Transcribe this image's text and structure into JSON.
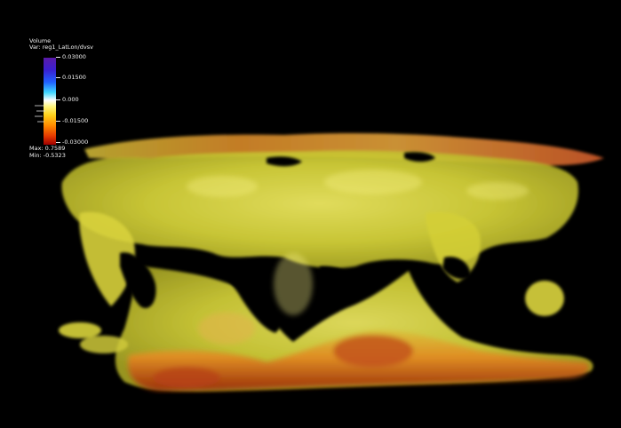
{
  "legend": {
    "title": "Volume",
    "variable": "Var: reg1_LatLon/dvsv",
    "ticks": [
      "0.03000",
      "0.01500",
      "0.000",
      "-0.01500",
      "-0.03000"
    ],
    "max_label": "Max:",
    "max_value": "0.7589",
    "min_label": "Min:",
    "min_value": "-0.5323",
    "colors": {
      "top": "#5a1aa8",
      "mid": "#ffffff",
      "bottom": "#a00000"
    }
  },
  "viewport": {
    "background": "#000000",
    "volume_main_color": "#e0df3a",
    "volume_hot_color": "#d4621a"
  }
}
